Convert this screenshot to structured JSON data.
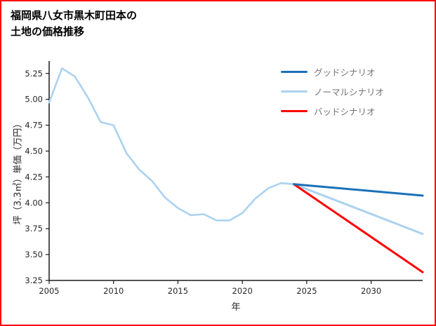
{
  "page": {
    "background": "#ffffff",
    "border_color": "#ff0000"
  },
  "title": {
    "line1": "福岡県八女市黒木町田本の",
    "line2": "土地の価格推移"
  },
  "chart_data": {
    "type": "line",
    "title": "福岡県八女市黒木町田本の土地の価格推移",
    "xlabel": "年",
    "ylabel": "坪（3.3㎡）単価（万円）",
    "xlim": [
      2005,
      2034
    ],
    "ylim": [
      3.25,
      5.35
    ],
    "x_ticks": [
      2005,
      2010,
      2015,
      2020,
      2025,
      2030
    ],
    "y_ticks": [
      3.25,
      3.5,
      3.75,
      4.0,
      4.25,
      4.5,
      4.75,
      5.0,
      5.25
    ],
    "grid": false,
    "legend_position": "top-right-inside",
    "series": [
      {
        "id": "history",
        "label": "",
        "color": "#abd2f0",
        "width": 2.6,
        "x": [
          2005,
          2006,
          2007,
          2008,
          2009,
          2010,
          2011,
          2012,
          2013,
          2014,
          2015,
          2016,
          2017,
          2018,
          2019,
          2020,
          2021,
          2022,
          2023,
          2024
        ],
        "values": [
          4.97,
          5.3,
          5.22,
          5.02,
          4.78,
          4.75,
          4.48,
          4.32,
          4.21,
          4.05,
          3.95,
          3.88,
          3.89,
          3.83,
          3.83,
          3.9,
          4.04,
          4.14,
          4.19,
          4.18
        ]
      },
      {
        "id": "normal",
        "label": "ノーマルシナリオ",
        "color": "#abd2f0",
        "width": 3,
        "x": [
          2024,
          2034
        ],
        "values": [
          4.18,
          3.7
        ]
      },
      {
        "id": "bad",
        "label": "バッドシナリオ",
        "color": "#ff0000",
        "width": 3,
        "x": [
          2024,
          2034
        ],
        "values": [
          4.18,
          3.33
        ]
      },
      {
        "id": "good",
        "label": "グッドシナリオ",
        "color": "#1a70b8",
        "width": 3,
        "x": [
          2024,
          2034
        ],
        "values": [
          4.18,
          4.07
        ]
      }
    ],
    "legend_order": [
      "good",
      "normal",
      "bad"
    ]
  }
}
